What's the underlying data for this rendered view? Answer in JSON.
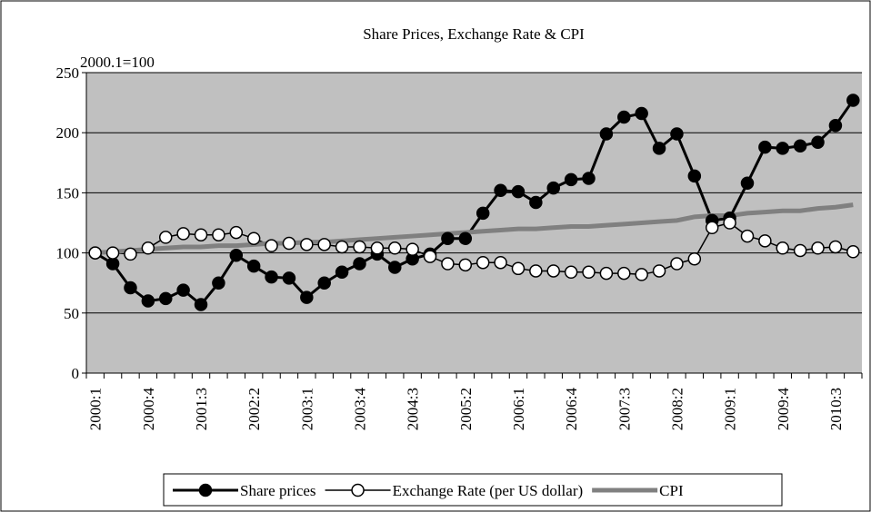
{
  "chart_data": {
    "type": "line",
    "title": "Share Prices, Exchange Rate & CPI",
    "annotation": "2000.1=100",
    "categories": [
      "2000:1",
      null,
      null,
      "2000:4",
      null,
      null,
      "2001:3",
      null,
      null,
      "2002:2",
      null,
      null,
      "2003:1",
      null,
      null,
      "2003:4",
      null,
      null,
      "2004:3",
      null,
      null,
      "2005:2",
      null,
      null,
      "2006:1",
      null,
      null,
      "2006:4",
      null,
      null,
      "2007:3",
      null,
      null,
      "2008:2",
      null,
      null,
      "2009:1",
      null,
      null,
      "2009:4",
      null,
      null,
      "2010:3",
      null
    ],
    "series": [
      {
        "name": "Share prices",
        "color": "#000000",
        "marker": "filled",
        "values": [
          100,
          91,
          71,
          60,
          62,
          69,
          57,
          75,
          98,
          89,
          80,
          79,
          63,
          75,
          84,
          91,
          99,
          88,
          95,
          99,
          112,
          112,
          133,
          152,
          151,
          142,
          154,
          161,
          162,
          199,
          213,
          216,
          187,
          199,
          164,
          127,
          129,
          158,
          188,
          187,
          189,
          192,
          206,
          227
        ]
      },
      {
        "name": "Exchange Rate (per US dollar)",
        "color": "#000000",
        "marker": "open",
        "values": [
          100,
          100,
          99,
          104,
          113,
          116,
          115,
          115,
          117,
          112,
          106,
          108,
          107,
          107,
          105,
          105,
          104,
          104,
          103,
          97,
          91,
          90,
          92,
          92,
          87,
          85,
          85,
          84,
          84,
          83,
          83,
          82,
          85,
          91,
          95,
          121,
          125,
          114,
          110,
          104,
          102,
          104,
          105,
          101
        ]
      },
      {
        "name": "CPI",
        "color": "#808080",
        "marker": "none",
        "values": [
          100,
          101,
          102,
          103,
          104,
          105,
          105,
          106,
          106,
          107,
          108,
          108,
          109,
          109,
          110,
          111,
          112,
          113,
          114,
          115,
          116,
          117,
          118,
          119,
          120,
          120,
          121,
          122,
          122,
          123,
          124,
          125,
          126,
          127,
          130,
          131,
          131,
          133,
          134,
          135,
          135,
          137,
          138,
          140
        ]
      }
    ],
    "ylim": [
      0,
      250
    ],
    "yticks": [
      0,
      50,
      100,
      150,
      200,
      250
    ],
    "grid": true,
    "legend": "bottom",
    "plot_background": "#c0c0c0"
  }
}
